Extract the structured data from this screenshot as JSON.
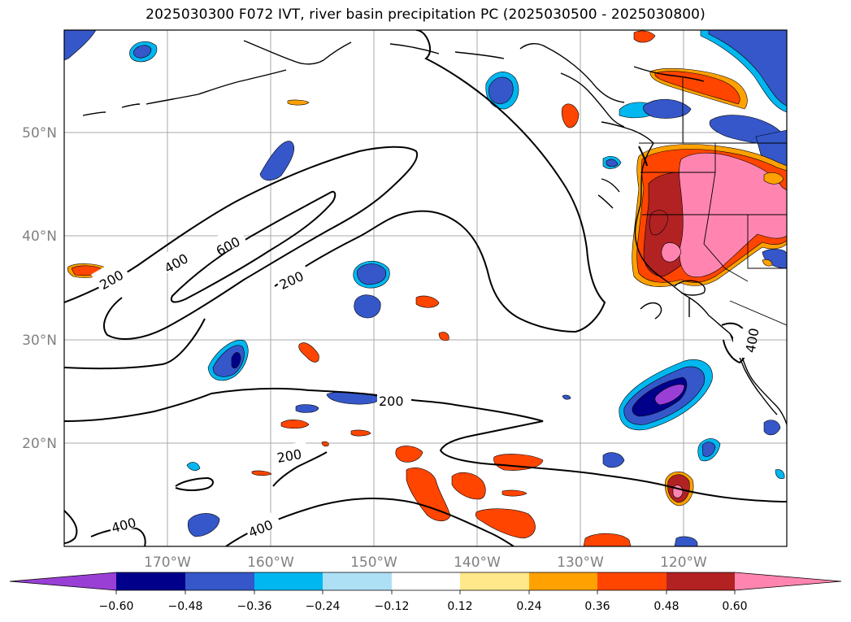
{
  "title": "2025030300 F072 IVT, river basin precipitation PC (2025030500 - 2025030800)",
  "map": {
    "lon_range": [
      -180,
      -110
    ],
    "lat_range": [
      10,
      60
    ],
    "lat_labels": [
      "50°N",
      "40°N",
      "30°N",
      "20°N"
    ],
    "lon_labels": [
      "170°W",
      "160°W",
      "150°W",
      "140°W",
      "130°W",
      "120°W"
    ],
    "gridlines": true
  },
  "ivt_contour_labels": [
    "200",
    "400",
    "600",
    "200",
    "200",
    "200",
    "400",
    "400",
    "400"
  ],
  "colorbar": {
    "tick_labels": [
      "−0.60",
      "−0.48",
      "−0.36",
      "−0.24",
      "−0.12",
      "0.12",
      "0.24",
      "0.36",
      "0.48",
      "0.60"
    ],
    "colors": {
      "lt_-0.60": "#9a3fd6",
      "-0.60_-0.48": "#00008b",
      "-0.48_-0.36": "#3557c9",
      "-0.36_-0.24": "#00b7f0",
      "-0.24_-0.12": "#aee0f5",
      "-0.12_0.12": "#ffffff",
      "0.12_0.24": "#fee88a",
      "0.24_0.36": "#ffa100",
      "0.36_0.48": "#ff4500",
      "0.48_0.60": "#b22222",
      "gt_0.60": "#ff85b0"
    }
  }
}
